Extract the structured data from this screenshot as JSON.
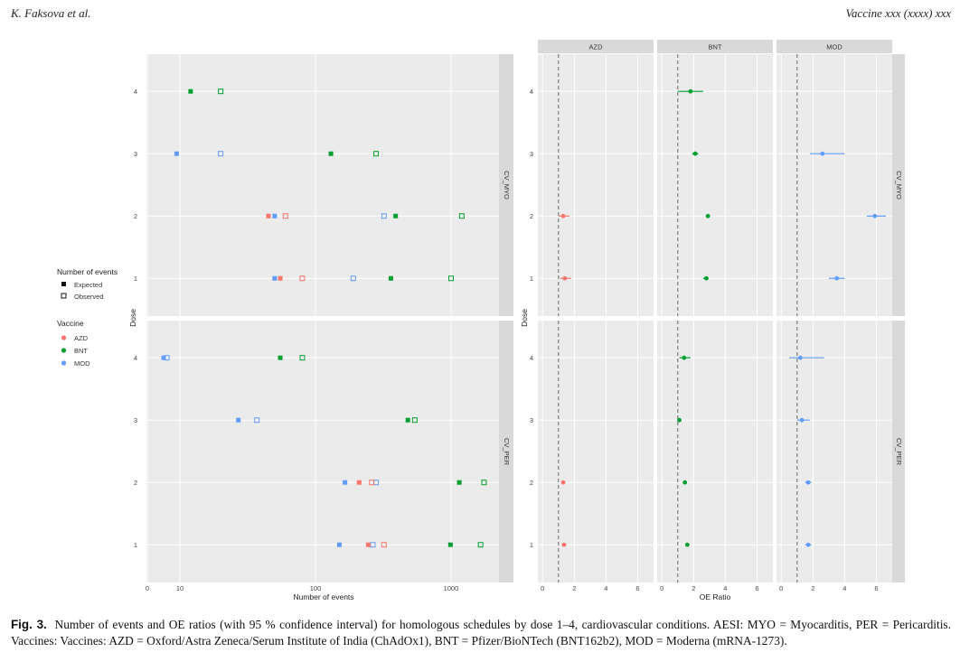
{
  "header": {
    "left": "K. Faksova et al.",
    "right": "Vaccine xxx (xxxx) xxx"
  },
  "caption": {
    "label": "Fig. 3.",
    "text": "Number of events and OE ratios (with 95 % confidence interval) for homologous schedules by dose 1–4, cardiovascular conditions. AESI: MYO = Myocarditis, PER = Pericarditis. Vaccines: Vaccines: AZD = Oxford/Astra Zeneca/Serum Institute of India (ChAdOx1), BNT = Pfizer/BioNTech (BNT162b2), MOD = Moderna (mRNA-1273)."
  },
  "colors": {
    "AZD": "#f8766d",
    "BNT": "#00a030",
    "MOD": "#619cff",
    "panel": "#ebebeb",
    "strip": "#d9d9d9"
  },
  "chart_data": [
    {
      "type": "scatter",
      "title": "Number of events",
      "xlabel": "Number of events",
      "ylabel": "Dose",
      "xscale": "log-ish",
      "xticks": [
        "0",
        "10",
        "100",
        "1000"
      ],
      "yticks": [
        "1",
        "2",
        "3",
        "4"
      ],
      "facets": [
        "CV_MYO",
        "CV_PER"
      ],
      "legend": {
        "shape_title": "Number of events",
        "shape_entries": [
          "Expected",
          "Observed"
        ],
        "color_title": "Vaccine",
        "color_entries": [
          "AZD",
          "BNT",
          "MOD"
        ]
      },
      "series": [
        {
          "facet": "CV_MYO",
          "vaccine": "BNT",
          "kind": "Expected",
          "points": [
            [
              4,
              12
            ],
            [
              3,
              130
            ],
            [
              2,
              390
            ],
            [
              1,
              360
            ]
          ]
        },
        {
          "facet": "CV_MYO",
          "vaccine": "BNT",
          "kind": "Observed",
          "points": [
            [
              4,
              20
            ],
            [
              3,
              280
            ],
            [
              2,
              1200
            ],
            [
              1,
              1000
            ]
          ]
        },
        {
          "facet": "CV_MYO",
          "vaccine": "MOD",
          "kind": "Expected",
          "points": [
            [
              3,
              9
            ],
            [
              2,
              50
            ],
            [
              1,
              50
            ]
          ]
        },
        {
          "facet": "CV_MYO",
          "vaccine": "MOD",
          "kind": "Observed",
          "points": [
            [
              3,
              20
            ],
            [
              2,
              320
            ],
            [
              1,
              190
            ]
          ]
        },
        {
          "facet": "CV_MYO",
          "vaccine": "AZD",
          "kind": "Expected",
          "points": [
            [
              2,
              45
            ],
            [
              1,
              55
            ]
          ]
        },
        {
          "facet": "CV_MYO",
          "vaccine": "AZD",
          "kind": "Observed",
          "points": [
            [
              2,
              60
            ],
            [
              1,
              80
            ]
          ]
        },
        {
          "facet": "CV_PER",
          "vaccine": "BNT",
          "kind": "Expected",
          "points": [
            [
              4,
              55
            ],
            [
              3,
              480
            ],
            [
              2,
              1150
            ],
            [
              1,
              990
            ]
          ]
        },
        {
          "facet": "CV_PER",
          "vaccine": "BNT",
          "kind": "Observed",
          "points": [
            [
              4,
              80
            ],
            [
              3,
              540
            ],
            [
              2,
              1750
            ],
            [
              1,
              1650
            ]
          ]
        },
        {
          "facet": "CV_PER",
          "vaccine": "MOD",
          "kind": "Expected",
          "points": [
            [
              4,
              5
            ],
            [
              3,
              27
            ],
            [
              2,
              165
            ],
            [
              1,
              150
            ]
          ]
        },
        {
          "facet": "CV_PER",
          "vaccine": "MOD",
          "kind": "Observed",
          "points": [
            [
              4,
              6
            ],
            [
              3,
              37
            ],
            [
              2,
              280
            ],
            [
              1,
              265
            ]
          ]
        },
        {
          "facet": "CV_PER",
          "vaccine": "AZD",
          "kind": "Expected",
          "points": [
            [
              2,
              210
            ],
            [
              1,
              245
            ]
          ]
        },
        {
          "facet": "CV_PER",
          "vaccine": "AZD",
          "kind": "Observed",
          "points": [
            [
              2,
              260
            ],
            [
              1,
              320
            ]
          ]
        }
      ]
    },
    {
      "type": "scatter",
      "title": "OE Ratio",
      "xlabel": "OE Ratio",
      "ylabel": "Dose",
      "xlim": [
        -0.3,
        7.0
      ],
      "xticks": [
        "0",
        "2",
        "4",
        "6"
      ],
      "yticks": [
        "1",
        "2",
        "3",
        "4"
      ],
      "columns": [
        "AZD",
        "BNT",
        "MOD"
      ],
      "rows": [
        "CV_MYO",
        "CV_PER"
      ],
      "reference_line": 1,
      "points": [
        {
          "row": "CV_MYO",
          "vaccine": "AZD",
          "dose": 2,
          "oe": 1.3,
          "lo": 1.0,
          "hi": 1.7
        },
        {
          "row": "CV_MYO",
          "vaccine": "AZD",
          "dose": 1,
          "oe": 1.4,
          "lo": 1.1,
          "hi": 1.8
        },
        {
          "row": "CV_MYO",
          "vaccine": "BNT",
          "dose": 4,
          "oe": 1.8,
          "lo": 1.0,
          "hi": 2.6
        },
        {
          "row": "CV_MYO",
          "vaccine": "BNT",
          "dose": 3,
          "oe": 2.1,
          "lo": 1.9,
          "hi": 2.3
        },
        {
          "row": "CV_MYO",
          "vaccine": "BNT",
          "dose": 2,
          "oe": 2.9,
          "lo": 2.8,
          "hi": 3.0
        },
        {
          "row": "CV_MYO",
          "vaccine": "BNT",
          "dose": 1,
          "oe": 2.8,
          "lo": 2.6,
          "hi": 2.95
        },
        {
          "row": "CV_MYO",
          "vaccine": "MOD",
          "dose": 3,
          "oe": 2.6,
          "lo": 1.8,
          "hi": 4.0
        },
        {
          "row": "CV_MYO",
          "vaccine": "MOD",
          "dose": 2,
          "oe": 5.9,
          "lo": 5.4,
          "hi": 6.6
        },
        {
          "row": "CV_MYO",
          "vaccine": "MOD",
          "dose": 1,
          "oe": 3.5,
          "lo": 3.0,
          "hi": 4.0
        },
        {
          "row": "CV_PER",
          "vaccine": "AZD",
          "dose": 2,
          "oe": 1.3,
          "lo": 1.2,
          "hi": 1.4
        },
        {
          "row": "CV_PER",
          "vaccine": "AZD",
          "dose": 1,
          "oe": 1.35,
          "lo": 1.2,
          "hi": 1.5
        },
        {
          "row": "CV_PER",
          "vaccine": "BNT",
          "dose": 4,
          "oe": 1.4,
          "lo": 1.1,
          "hi": 1.8
        },
        {
          "row": "CV_PER",
          "vaccine": "BNT",
          "dose": 3,
          "oe": 1.1,
          "lo": 1.0,
          "hi": 1.2
        },
        {
          "row": "CV_PER",
          "vaccine": "BNT",
          "dose": 2,
          "oe": 1.45,
          "lo": 1.4,
          "hi": 1.5
        },
        {
          "row": "CV_PER",
          "vaccine": "BNT",
          "dose": 1,
          "oe": 1.6,
          "lo": 1.5,
          "hi": 1.7
        },
        {
          "row": "CV_PER",
          "vaccine": "MOD",
          "dose": 4,
          "oe": 1.2,
          "lo": 0.5,
          "hi": 2.7
        },
        {
          "row": "CV_PER",
          "vaccine": "MOD",
          "dose": 3,
          "oe": 1.3,
          "lo": 1.0,
          "hi": 1.8
        },
        {
          "row": "CV_PER",
          "vaccine": "MOD",
          "dose": 2,
          "oe": 1.7,
          "lo": 1.5,
          "hi": 1.9
        },
        {
          "row": "CV_PER",
          "vaccine": "MOD",
          "dose": 1,
          "oe": 1.7,
          "lo": 1.5,
          "hi": 1.9
        }
      ]
    }
  ]
}
